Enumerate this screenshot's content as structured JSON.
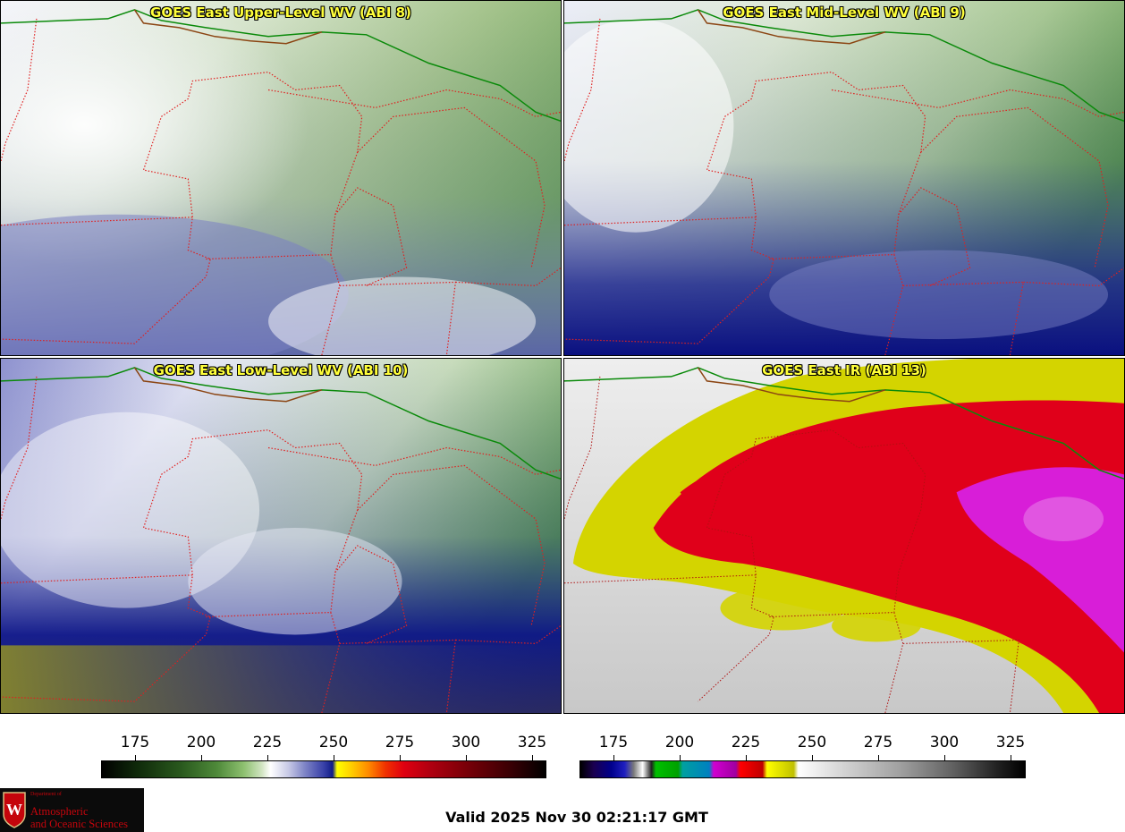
{
  "panels": [
    {
      "id": "upper",
      "title": "GOES East Upper-Level WV (ABI 8)"
    },
    {
      "id": "mid",
      "title": "GOES East Mid-Level WV (ABI 9)"
    },
    {
      "id": "low",
      "title": "GOES East Low-Level WV (ABI 10)"
    },
    {
      "id": "ir",
      "title": "GOES East IR (ABI 13)"
    }
  ],
  "colorbars": [
    {
      "name": "water-vapor",
      "ticks": [
        "175",
        "200",
        "225",
        "250",
        "275",
        "300",
        "325"
      ],
      "range": [
        160,
        328
      ]
    },
    {
      "name": "infrared",
      "ticks": [
        "175",
        "200",
        "225",
        "250",
        "275",
        "300",
        "325"
      ],
      "range": [
        160,
        328
      ]
    }
  ],
  "logo": {
    "department_of": "Department of",
    "line1": "Atmospheric",
    "line2": "and Oceanic Sciences",
    "crest_letter": "W"
  },
  "valid_time": "Valid 2025 Nov 30 02:21:17 GMT",
  "colors": {
    "title_text": "#ffff3a",
    "state_borders": "#e02020",
    "country_border": "#0a8a0a",
    "coast": "#8b4513",
    "logo_red": "#c5050c"
  }
}
